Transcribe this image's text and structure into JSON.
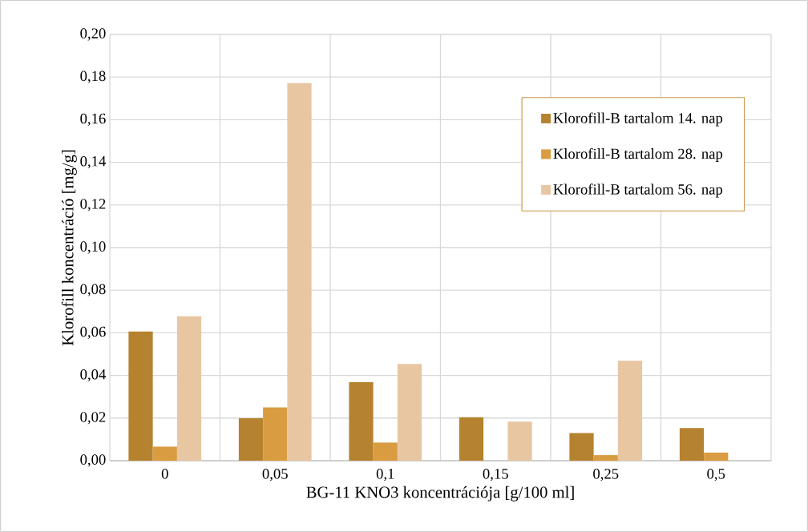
{
  "chart_data": {
    "type": "bar",
    "xlabel": "BG-11 KNO3 koncentrációja [g/100 ml]",
    "ylabel": "Klorofill koncentráció [mg/g]",
    "categories": [
      "0",
      "0,05",
      "0,1",
      "0,15",
      "0,25",
      "0,5"
    ],
    "series": [
      {
        "name": "Klorofill-B tartalom 14. nap",
        "color": "#b5822f",
        "values": [
          0.0606,
          0.0199,
          0.0368,
          0.0204,
          0.013,
          0.0153
        ]
      },
      {
        "name": "Klorofill-B tartalom 28. nap",
        "color": "#d99c40",
        "values": [
          0.0066,
          0.025,
          0.0085,
          null,
          0.0026,
          0.0038
        ]
      },
      {
        "name": "Klorofill-B tartalom 56. nap",
        "color": "#e8c6a2",
        "values": [
          0.0678,
          0.1772,
          0.0454,
          0.0183,
          0.0469,
          null
        ]
      }
    ],
    "ylim": [
      0,
      0.2
    ],
    "yticks": [
      {
        "value": 0,
        "label": "0,00"
      },
      {
        "value": 0.02,
        "label": "0,02"
      },
      {
        "value": 0.04,
        "label": "0,04"
      },
      {
        "value": 0.06,
        "label": "0,06"
      },
      {
        "value": 0.08,
        "label": "0,08"
      },
      {
        "value": 0.1,
        "label": "0,10"
      },
      {
        "value": 0.12,
        "label": "0,12"
      },
      {
        "value": 0.14,
        "label": "0,14"
      },
      {
        "value": 0.16,
        "label": "0,16"
      },
      {
        "value": 0.18,
        "label": "0,18"
      },
      {
        "value": 0.2,
        "label": "0,20"
      }
    ],
    "grid": true,
    "legend": "top right"
  }
}
